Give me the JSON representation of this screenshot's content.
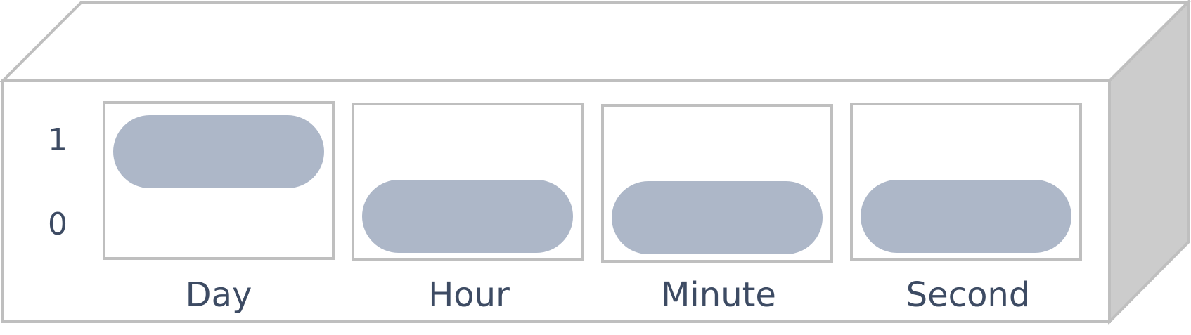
{
  "diagram": {
    "row_labels": {
      "high": "1",
      "low": "0"
    },
    "switches": [
      {
        "label": "Day",
        "value": 1
      },
      {
        "label": "Hour",
        "value": 0
      },
      {
        "label": "Minute",
        "value": 0
      },
      {
        "label": "Second",
        "value": 0
      }
    ],
    "colors": {
      "outline": "#bfbfbf",
      "side_face": "#cccccc",
      "knob": "#adb7c8",
      "text": "#3d4b63",
      "background": "#ffffff"
    }
  }
}
